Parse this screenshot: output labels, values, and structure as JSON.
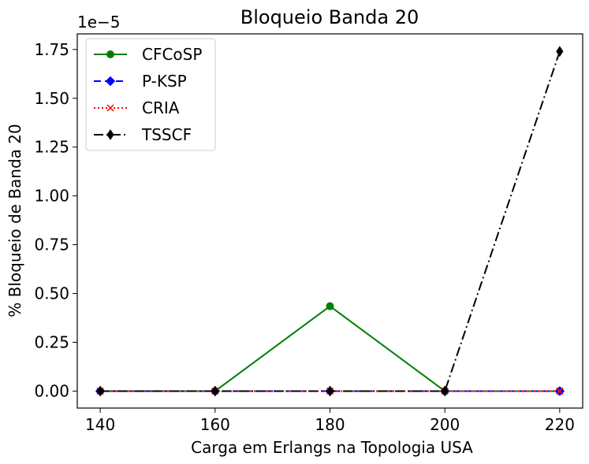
{
  "chart_data": {
    "type": "line",
    "title": "Bloqueio Banda 20",
    "xlabel": "Carga em Erlangs na Topologia USA",
    "ylabel": "% Bloqueio de Banda 20",
    "y_offset_label": "1e−5",
    "x": [
      140,
      160,
      180,
      200,
      220
    ],
    "xlim": [
      136,
      224
    ],
    "ylim": [
      -0.087,
      1.83
    ],
    "x_ticks": [
      140,
      160,
      180,
      200,
      220
    ],
    "x_tick_labels": [
      "140",
      "160",
      "180",
      "200",
      "220"
    ],
    "y_ticks": [
      0,
      0.25,
      0.5,
      0.75,
      1.0,
      1.25,
      1.5,
      1.75
    ],
    "y_tick_labels": [
      "0.00",
      "0.25",
      "0.50",
      "0.75",
      "1.00",
      "1.25",
      "1.50",
      "1.75"
    ],
    "grid": false,
    "legend_position": "top-left",
    "series": [
      {
        "name": "CFCoSP",
        "values": [
          0,
          0,
          0.435,
          0,
          0
        ],
        "color": "#008000",
        "marker": "circle",
        "dash": ""
      },
      {
        "name": "P-KSP",
        "values": [
          0,
          0,
          0,
          0,
          0
        ],
        "color": "#0000ff",
        "marker": "diamond",
        "dash": "9,5"
      },
      {
        "name": "CRIA",
        "values": [
          0,
          0,
          0,
          0,
          0
        ],
        "color": "#ff0000",
        "marker": "x",
        "dash": "2,3"
      },
      {
        "name": "TSSCF",
        "values": [
          0,
          0,
          0,
          0,
          1.74
        ],
        "color": "#000000",
        "marker": "thin-diamond",
        "dash": "12,4,2,4"
      }
    ]
  }
}
